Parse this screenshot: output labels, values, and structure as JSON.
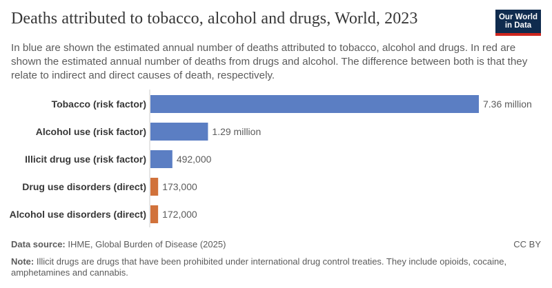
{
  "header": {
    "title": "Deaths attributed to tobacco, alcohol and drugs, World, 2023",
    "subtitle": "In blue are shown the estimated annual number of deaths attributed to tobacco, alcohol and drugs. In red are shown the estimated annual number of deaths from drugs and alcohol. The difference between both is that they relate to indirect and direct causes of death, respectively.",
    "logo_line1": "Our World",
    "logo_line2": "in Data"
  },
  "footer": {
    "source_label": "Data source:",
    "source_text": "IHME, Global Burden of Disease (2025)",
    "license": "CC BY",
    "note_label": "Note:",
    "note_text": "Illicit drugs are drugs that have been prohibited under international drug control treaties. They include opioids, cocaine, amphetamines and cannabis."
  },
  "colors": {
    "indirect": "#5b7ec3",
    "direct": "#d1723b",
    "axis": "#cccccc",
    "logo_bg": "#0f2b4e",
    "logo_accent": "#ce261e"
  },
  "chart_data": {
    "type": "bar",
    "orientation": "horizontal",
    "categories": [
      "Tobacco (risk factor)",
      "Alcohol use (risk factor)",
      "Illicit drug use (risk factor)",
      "Drug use disorders (direct)",
      "Alcohol use disorders (direct)"
    ],
    "values": [
      7360000,
      1290000,
      492000,
      173000,
      172000
    ],
    "value_labels": [
      "7.36 million",
      "1.29 million",
      "492,000",
      "173,000",
      "172,000"
    ],
    "bar_groups": [
      "indirect",
      "indirect",
      "indirect",
      "direct",
      "direct"
    ],
    "xlim": [
      0,
      7360000
    ],
    "grid": false
  }
}
